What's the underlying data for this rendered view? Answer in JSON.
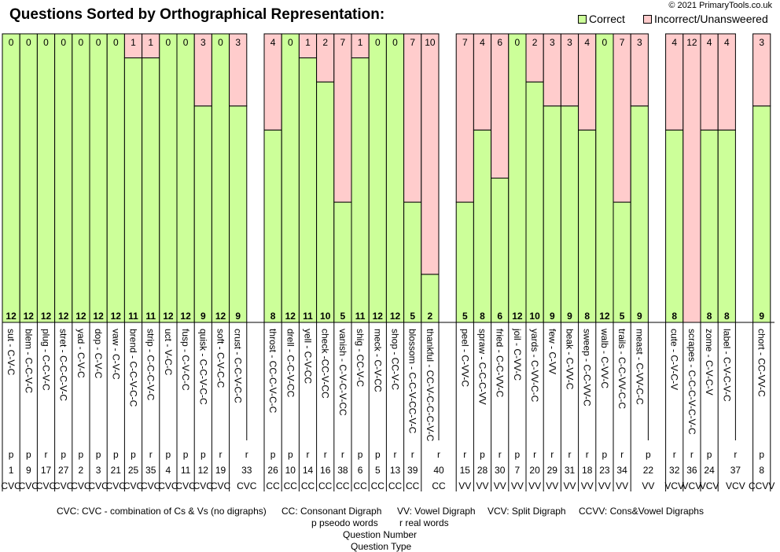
{
  "title": "Questions Sorted by Orthographical Representation:",
  "copyright": "© 2021 PrimaryTools.co.uk",
  "colors": {
    "correct": "#ccff99",
    "incorrect": "#ffcccc"
  },
  "chart_data": {
    "type": "bar",
    "stacked": true,
    "title": "Questions Sorted by Orthographical Representation:",
    "ylim": [
      0,
      12
    ],
    "legend": [
      "Correct",
      "Incorrect/Unanswered"
    ],
    "legend_placement": "top-right",
    "series_names": [
      "correct",
      "incorrect"
    ],
    "bars": [
      {
        "word": "sut - C-V-C",
        "rp": "p",
        "q": "1",
        "type": "CVC",
        "correct": 12,
        "incorrect": 0
      },
      {
        "word": "blem - C-C-V-C",
        "rp": "p",
        "q": "9",
        "type": "CVC",
        "correct": 12,
        "incorrect": 0
      },
      {
        "word": "plug - C-C-V-C",
        "rp": "r",
        "q": "17",
        "type": "CVC",
        "correct": 12,
        "incorrect": 0
      },
      {
        "word": "stret - C-C-C-V-C",
        "rp": "p",
        "q": "27",
        "type": "CVC",
        "correct": 12,
        "incorrect": 0
      },
      {
        "word": "yad - C-V-C",
        "rp": "p",
        "q": "2",
        "type": "CVC",
        "correct": 12,
        "incorrect": 0
      },
      {
        "word": "dop - C-V-C",
        "rp": "p",
        "q": "3",
        "type": "CVC",
        "correct": 12,
        "incorrect": 0
      },
      {
        "word": "vaw - C-V-C",
        "rp": "p",
        "q": "21",
        "type": "CVC",
        "correct": 12,
        "incorrect": 0
      },
      {
        "word": "brend - C-C-V-C-C",
        "rp": "p",
        "q": "25",
        "type": "CVC",
        "correct": 11,
        "incorrect": 1
      },
      {
        "word": "strip - C-C-C-V-C",
        "rp": "r",
        "q": "35",
        "type": "CVC",
        "correct": 11,
        "incorrect": 1
      },
      {
        "word": "uct - V-C-C",
        "rp": "p",
        "q": "4",
        "type": "CVC",
        "correct": 12,
        "incorrect": 0
      },
      {
        "word": "fusp - C-V-C-C",
        "rp": "p",
        "q": "11",
        "type": "CVC",
        "correct": 12,
        "incorrect": 0
      },
      {
        "word": "quisk - C-C-V-C-C",
        "rp": "p",
        "q": "12",
        "type": "CVC",
        "correct": 9,
        "incorrect": 3
      },
      {
        "word": "soft - C-V-C-C",
        "rp": "r",
        "q": "19",
        "type": "CVC",
        "correct": 12,
        "incorrect": 0
      },
      {
        "word": "crust - C-C-V-C-C",
        "rp": "r",
        "q": "33",
        "type": "CVC",
        "correct": 9,
        "incorrect": 3,
        "last": true
      },
      {
        "word": "throst - CC-C-V-C-C",
        "rp": "p",
        "q": "26",
        "type": "CC",
        "correct": 8,
        "incorrect": 4
      },
      {
        "word": "drell - C-C-V-CC",
        "rp": "p",
        "q": "10",
        "type": "CC",
        "correct": 12,
        "incorrect": 0
      },
      {
        "word": "yell - C-V-CC",
        "rp": "r",
        "q": "14",
        "type": "CC",
        "correct": 11,
        "incorrect": 1
      },
      {
        "word": "check -CC-V-CC",
        "rp": "r",
        "q": "16",
        "type": "CC",
        "correct": 10,
        "incorrect": 2
      },
      {
        "word": "vanish - C-V-C-V-CC",
        "rp": "r",
        "q": "38",
        "type": "CC",
        "correct": 5,
        "incorrect": 7
      },
      {
        "word": "shig - CC-V-C",
        "rp": "p",
        "q": "6",
        "type": "CC",
        "correct": 11,
        "incorrect": 1
      },
      {
        "word": "meck - C-V-CC",
        "rp": "p",
        "q": "5",
        "type": "CC",
        "correct": 12,
        "incorrect": 0
      },
      {
        "word": "shop - CC-V-C",
        "rp": "r",
        "q": "13",
        "type": "CC",
        "correct": 12,
        "incorrect": 0
      },
      {
        "word": "blossom - C-C-V-CC-V-C",
        "rp": "r",
        "q": "39",
        "type": "CC",
        "correct": 5,
        "incorrect": 7
      },
      {
        "word": "thankful - CC-V-C-C-C-V-C",
        "rp": "r",
        "q": "40",
        "type": "CC",
        "correct": 2,
        "incorrect": 10,
        "last": true
      },
      {
        "word": "peel - C-VV-C",
        "rp": "r",
        "q": "15",
        "type": "VV",
        "correct": 5,
        "incorrect": 7
      },
      {
        "word": "spraw - C-C-C-VV",
        "rp": "p",
        "q": "28",
        "type": "VV",
        "correct": 8,
        "incorrect": 4
      },
      {
        "word": "fried - C-C-VV-C",
        "rp": "r",
        "q": "30",
        "type": "VV",
        "correct": 6,
        "incorrect": 6
      },
      {
        "word": "joil - C-VV-C",
        "rp": "p",
        "q": "7",
        "type": "VV",
        "correct": 12,
        "incorrect": 0
      },
      {
        "word": "yards - C-VV-C-C",
        "rp": "r",
        "q": "20",
        "type": "VV",
        "correct": 10,
        "incorrect": 2
      },
      {
        "word": "few - C-VV",
        "rp": "r",
        "q": "29",
        "type": "VV",
        "correct": 9,
        "incorrect": 3
      },
      {
        "word": "beak - C-VV-C",
        "rp": "r",
        "q": "31",
        "type": "VV",
        "correct": 9,
        "incorrect": 3
      },
      {
        "word": "sweep - C-C-VV-C",
        "rp": "r",
        "q": "18",
        "type": "VV",
        "correct": 8,
        "incorrect": 4
      },
      {
        "word": "walb - C-VV-C",
        "rp": "p",
        "q": "23",
        "type": "VV",
        "correct": 12,
        "incorrect": 0
      },
      {
        "word": "trails - C-C-VV-C-C",
        "rp": "r",
        "q": "34",
        "type": "VV",
        "correct": 5,
        "incorrect": 7
      },
      {
        "word": "meast - C-VV-C-C",
        "rp": "p",
        "q": "22",
        "type": "VV",
        "correct": 9,
        "incorrect": 3,
        "last": true
      },
      {
        "word": "cute - C-V-C-V",
        "rp": "r",
        "q": "32",
        "type": "VCV",
        "correct": 8,
        "incorrect": 4
      },
      {
        "word": "scrapes - C-C-C-V-C-V-C",
        "rp": "r",
        "q": "36",
        "type": "VCV",
        "correct": 0,
        "incorrect": 12
      },
      {
        "word": "zome - C-V-C-V",
        "rp": "p",
        "q": "24",
        "type": "VCV",
        "correct": 8,
        "incorrect": 4
      },
      {
        "word": "label - C-V-C-V-C",
        "rp": "r",
        "q": "37",
        "type": "VCV",
        "correct": 8,
        "incorrect": 4,
        "last": true
      },
      {
        "word": "chort - CC-VV-C",
        "rp": "p",
        "q": "8",
        "type": "CCVV",
        "correct": 9,
        "incorrect": 3
      }
    ]
  },
  "legend": {
    "correct": "Correct",
    "incorrect": "Incorrect/Unansweered"
  },
  "footer": {
    "key_cvc": "CVC: CVC - combination of Cs & Vs (no digraphs)",
    "key_cc": "CC: Consonant Digraph",
    "key_vv": "VV: Vowel Digraph",
    "key_vcv": "VCV: Split Digraph",
    "key_ccvv": "CCVV: Cons&Vowel Digraphs",
    "key_p": "p pseodo words",
    "key_r": "r real words",
    "question_number": "Question Number",
    "question_type": "Question Type"
  }
}
